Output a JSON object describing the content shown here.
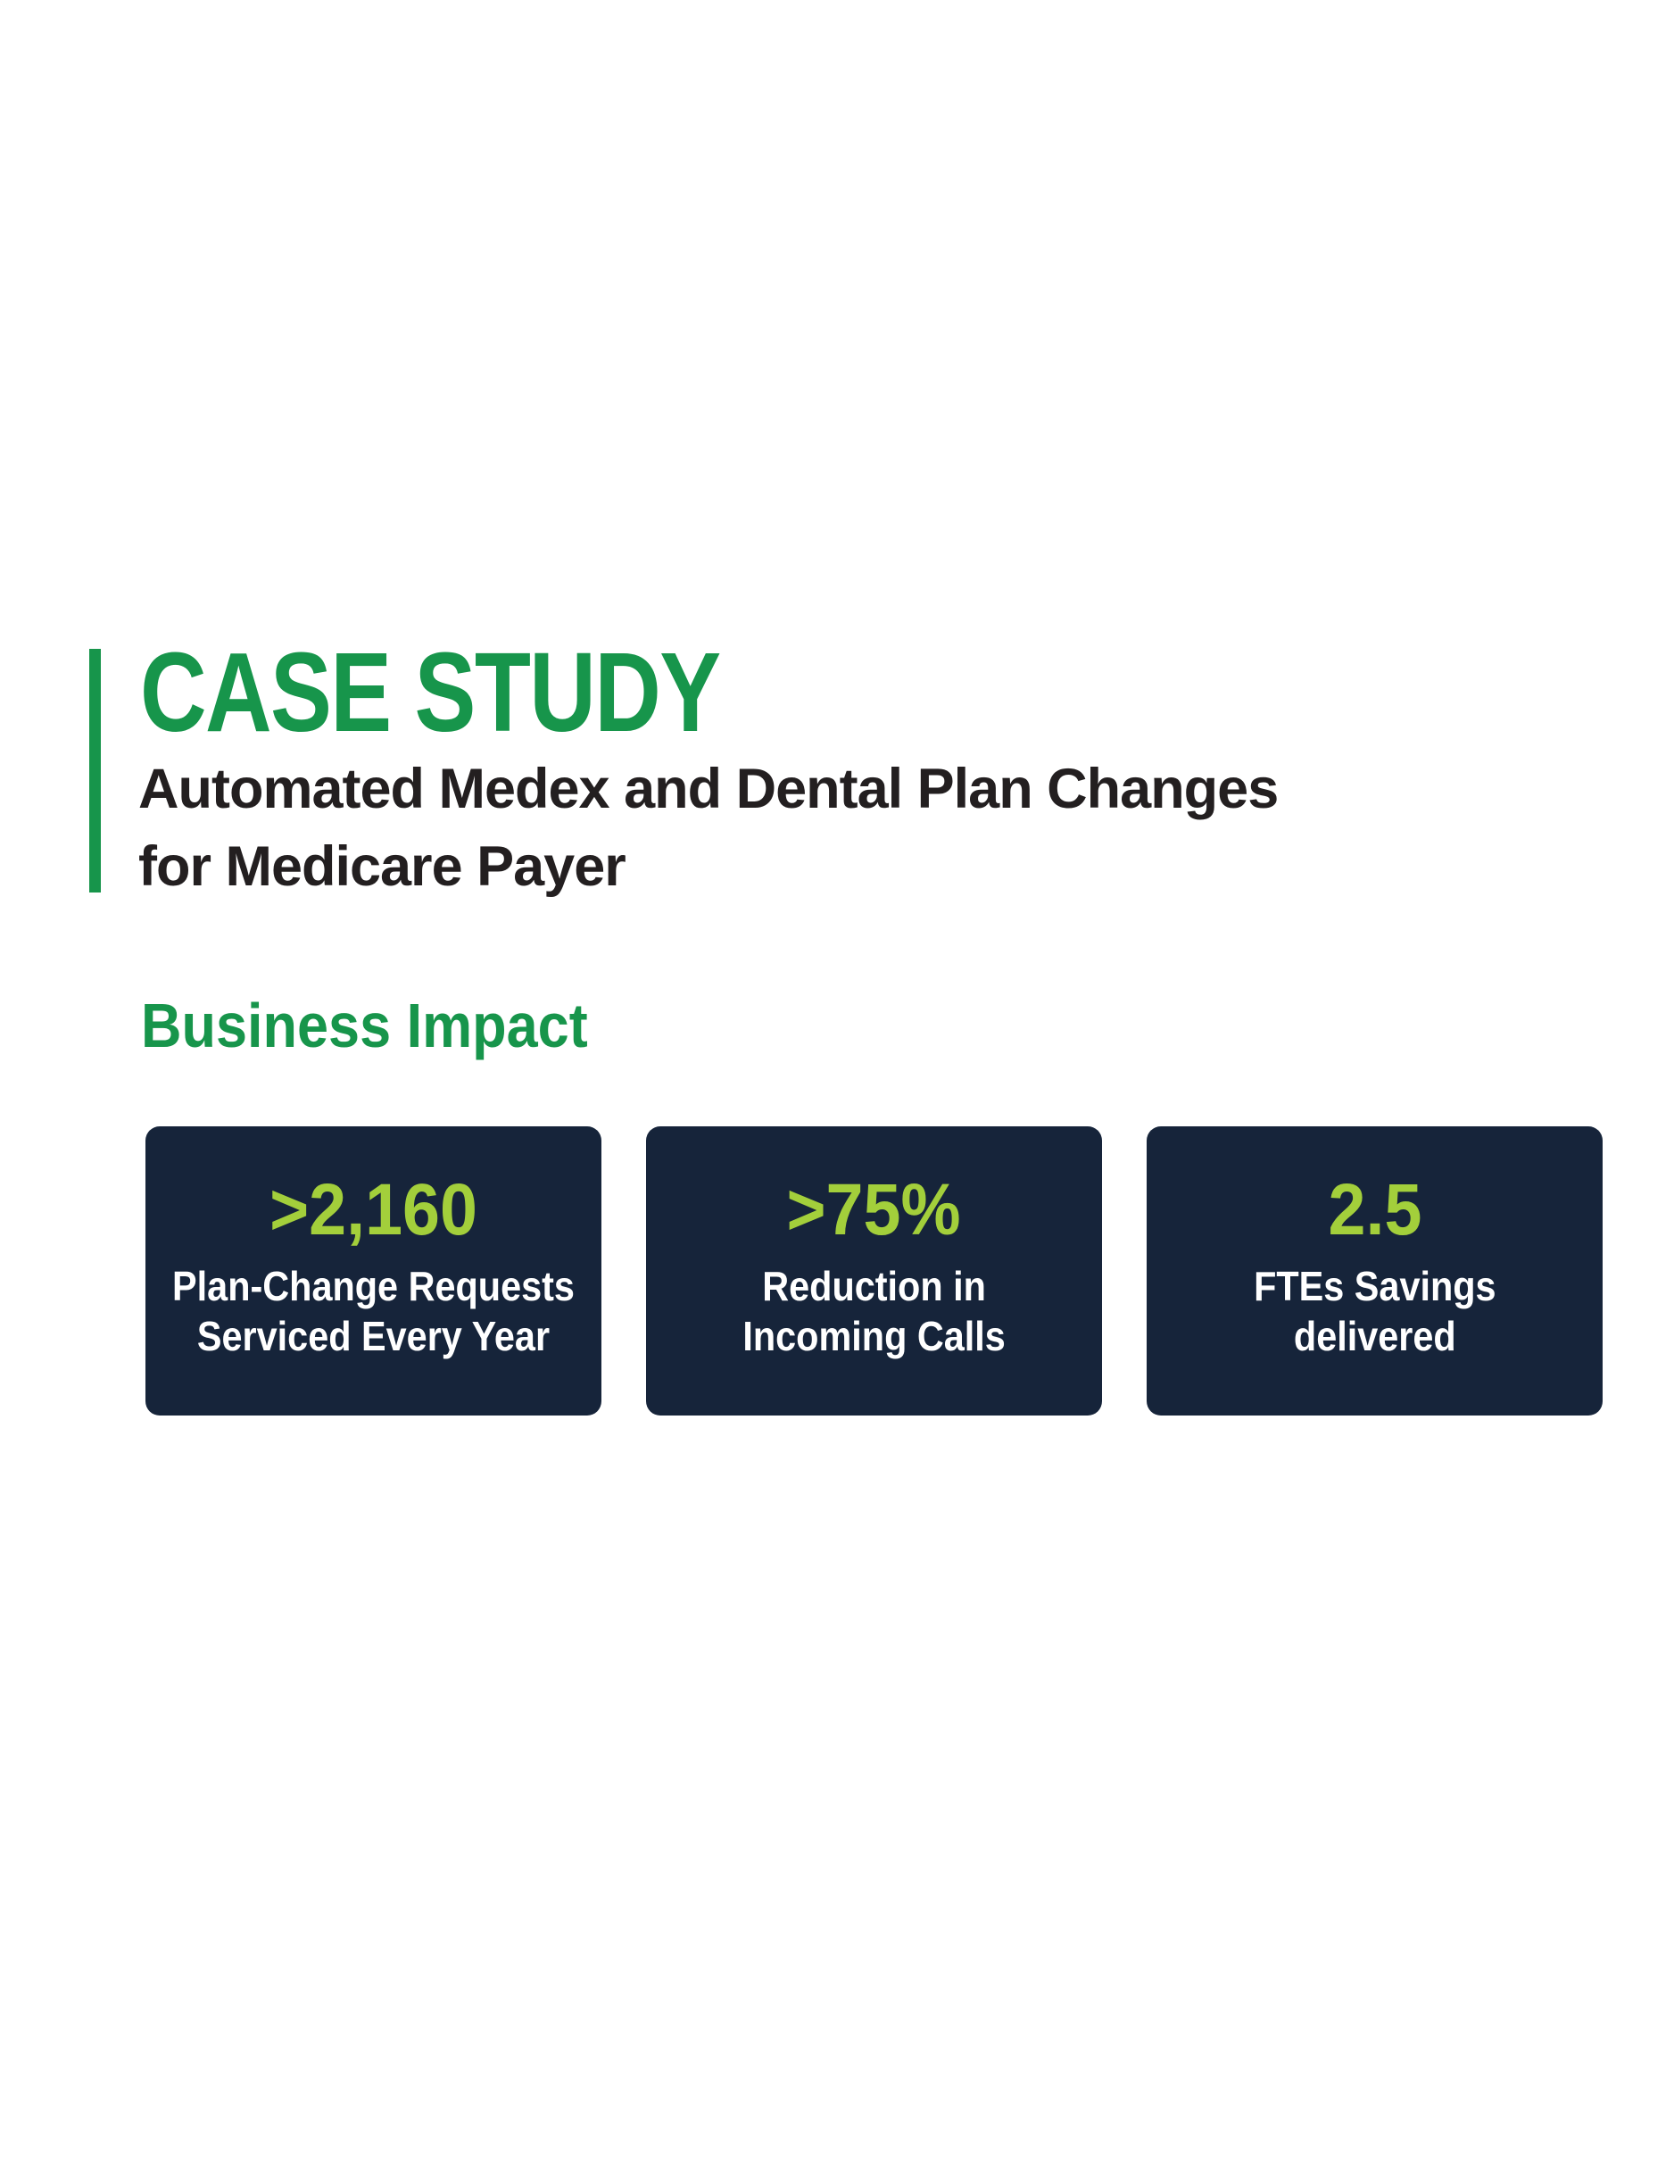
{
  "colors": {
    "brand_green": "#17954B",
    "lime": "#A3CF3B",
    "navy": "#16243A",
    "title_dark": "#231F20",
    "white": "#FFFFFF"
  },
  "header": {
    "eyebrow": "CASE STUDY",
    "title_line1": "Automated Medex and Dental Plan Changes",
    "title_line2": "for Medicare Payer"
  },
  "section": {
    "heading": "Business Impact"
  },
  "impact_cards": [
    {
      "value": ">2,160",
      "label_line1": "Plan-Change Requests",
      "label_line2": "Serviced Every Year"
    },
    {
      "value": ">75%",
      "label_line1": "Reduction in",
      "label_line2": "Incoming Calls"
    },
    {
      "value": "2.5",
      "label_line1": "FTEs Savings",
      "label_line2": "delivered"
    }
  ]
}
